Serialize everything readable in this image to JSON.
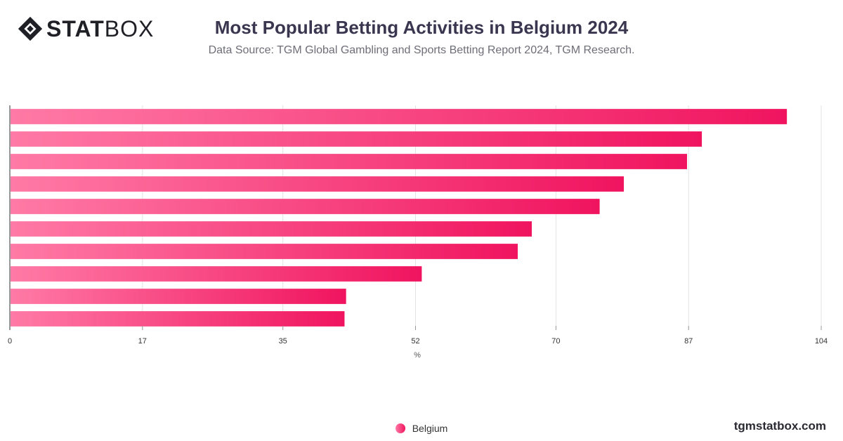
{
  "brand": {
    "bold": "STAT",
    "light": "BOX",
    "site": "tgmstatbox.com"
  },
  "chart_data": {
    "type": "bar",
    "orientation": "horizontal",
    "title": "Most Popular Betting Activities in Belgium 2024",
    "subtitle": "Data Source: TGM Global Gambling and Sports Betting Report 2024, TGM Research.",
    "xlabel": "%",
    "xlim": [
      0,
      104
    ],
    "xticks": [
      "0",
      "17",
      "35",
      "52",
      "70",
      "87",
      "104"
    ],
    "grid": true,
    "legend_position": "bottom",
    "colors": {
      "bar_start": "#ff7aa6",
      "bar_end": "#f0145f",
      "grid": "#e3e3e3",
      "axis": "#333333"
    },
    "series": [
      {
        "name": "Belgium",
        "values": [
          99.6,
          88.7,
          86.8,
          78.7,
          75.6,
          66.9,
          65.1,
          52.8,
          43.1,
          42.9
        ]
      }
    ]
  }
}
